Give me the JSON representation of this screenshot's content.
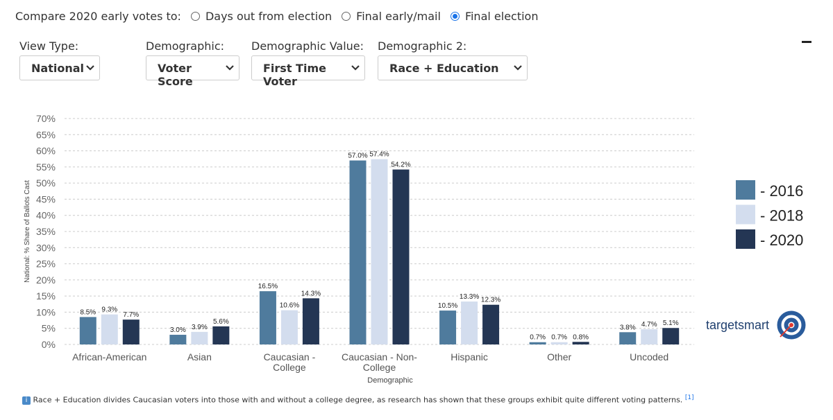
{
  "compare": {
    "label": "Compare 2020 early votes to:",
    "options": [
      "Days out from election",
      "Final early/mail",
      "Final election"
    ],
    "selected": 2
  },
  "filters": [
    {
      "label": "View Type:",
      "value": "National"
    },
    {
      "label": "Demographic:",
      "value": "Voter Score"
    },
    {
      "label": "Demographic Value:",
      "value": "First Time Voter"
    },
    {
      "label": "Demographic 2:",
      "value": "Race + Education"
    }
  ],
  "chart_data": {
    "type": "bar",
    "y_label": "National: % Share of Ballots Cast",
    "x_label": "Demographic",
    "categories": [
      "African-American",
      "Asian",
      "Caucasian - College",
      "Caucasian - Non-College",
      "Hispanic",
      "Other",
      "Uncoded"
    ],
    "series": [
      {
        "name": "- 2016",
        "color": "#4f7b9d",
        "values": [
          8.5,
          3.0,
          16.5,
          57.0,
          10.5,
          0.7,
          3.8
        ],
        "value_labels": [
          "8.5%",
          "3.0%",
          "16.5%",
          "57.0%",
          "10.5%",
          "0.7%",
          "3.8%"
        ]
      },
      {
        "name": "- 2018",
        "color": "#d3ddee",
        "values": [
          9.3,
          3.9,
          10.6,
          57.4,
          13.3,
          0.7,
          4.7
        ],
        "value_labels": [
          "9.3%",
          "3.9%",
          "10.6%",
          "57.4%",
          "13.3%",
          "0.7%",
          "4.7%"
        ]
      },
      {
        "name": "- 2020",
        "color": "#243654",
        "values": [
          7.7,
          5.6,
          14.3,
          54.2,
          12.3,
          0.8,
          5.1
        ],
        "value_labels": [
          "7.7%",
          "5.6%",
          "14.3%",
          "54.2%",
          "12.3%",
          "0.8%",
          "5.1%"
        ]
      }
    ],
    "ylim": [
      0,
      70
    ],
    "yticks": [
      {
        "value": 0,
        "label": "0%"
      },
      {
        "value": 5,
        "label": "5%"
      },
      {
        "value": 10,
        "label": "10%"
      },
      {
        "value": 15,
        "label": "15%"
      },
      {
        "value": 20,
        "label": "20%"
      },
      {
        "value": 25,
        "label": "25%"
      },
      {
        "value": 30,
        "label": "30%"
      },
      {
        "value": 35,
        "label": "35%"
      },
      {
        "value": 40,
        "label": "40%"
      },
      {
        "value": 45,
        "label": "45%"
      },
      {
        "value": 50,
        "label": "50%"
      },
      {
        "value": 55,
        "label": "55%"
      },
      {
        "value": 60,
        "label": "60%"
      },
      {
        "value": 65,
        "label": "65%"
      },
      {
        "value": 70,
        "label": "70%"
      }
    ],
    "grid": true
  },
  "brand": "targetsmart",
  "footnote": {
    "text": "Race + Education divides Caucasian voters into those with and without a college degree, as research has shown that these groups exhibit quite different voting patterns.",
    "ref": "[1]"
  }
}
